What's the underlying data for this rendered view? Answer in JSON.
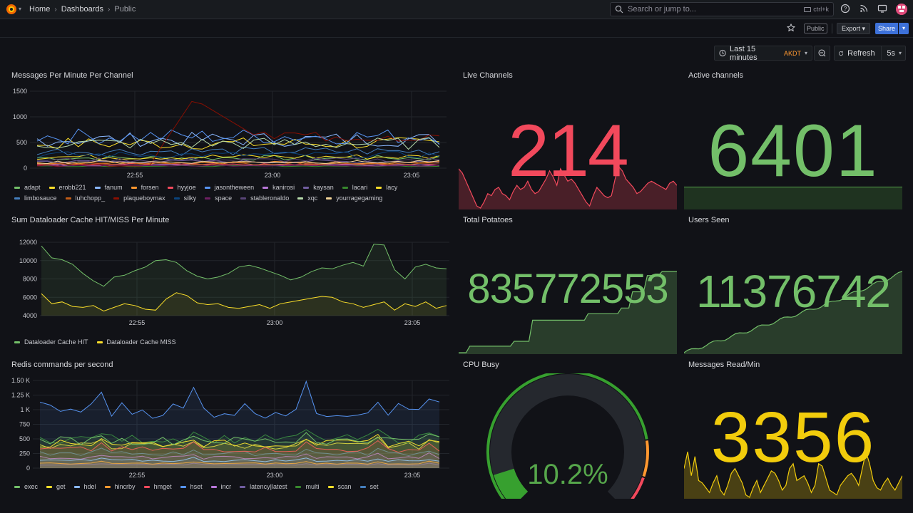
{
  "nav": {
    "breadcrumbs": [
      "Home",
      "Dashboards",
      "Public"
    ],
    "search_placeholder": "Search or jump to...",
    "search_shortcut": "ctrl+k"
  },
  "toolbar": {
    "public_badge": "Public",
    "export_label": "Export",
    "share_label": "Share",
    "time_range": "Last 15 minutes",
    "timezone": "AKDT",
    "refresh_label": "Refresh",
    "refresh_interval": "5s"
  },
  "panels": {
    "messages": {
      "title": "Messages Per Minute Per Channel",
      "yticks": [
        "1500",
        "1000",
        "500",
        "0"
      ],
      "xticks": [
        "22:55",
        "23:00",
        "23:05"
      ],
      "legend": [
        {
          "name": "adapt",
          "color": "#73bf69"
        },
        {
          "name": "erobb221",
          "color": "#fade2a"
        },
        {
          "name": "fanum",
          "color": "#8ab8ff"
        },
        {
          "name": "forsen",
          "color": "#ff9830"
        },
        {
          "name": "hyyjoe",
          "color": "#f2495c"
        },
        {
          "name": "jasontheween",
          "color": "#5794f2"
        },
        {
          "name": "kanirosi",
          "color": "#b877d9"
        },
        {
          "name": "kaysan",
          "color": "#705da0"
        },
        {
          "name": "lacari",
          "color": "#37872d"
        },
        {
          "name": "lacy",
          "color": "#fade2a"
        },
        {
          "name": "limbosauce",
          "color": "#447ebc"
        },
        {
          "name": "luhchopp_",
          "color": "#c15c17"
        },
        {
          "name": "plaqueboymax",
          "color": "#890f02"
        },
        {
          "name": "silky",
          "color": "#0a437c"
        },
        {
          "name": "space",
          "color": "#6d1f62"
        },
        {
          "name": "stableronaldo",
          "color": "#584477"
        },
        {
          "name": "xqc",
          "color": "#b7dbab"
        },
        {
          "name": "yourragegaming",
          "color": "#f4d598"
        }
      ]
    },
    "live": {
      "title": "Live Channels",
      "value": "214"
    },
    "active": {
      "title": "Active channels",
      "value": "6401"
    },
    "dataloader": {
      "title": "Sum Dataloader Cache HIT/MISS Per Minute",
      "yticks": [
        "12000",
        "10000",
        "8000",
        "6000",
        "4000"
      ],
      "xticks": [
        "22:55",
        "23:00",
        "23:05"
      ],
      "legend": [
        {
          "name": "Dataloader Cache HIT",
          "color": "#73bf69"
        },
        {
          "name": "Dataloader Cache MISS",
          "color": "#fade2a"
        }
      ]
    },
    "potatoes": {
      "title": "Total Potatoes",
      "value": "835772553"
    },
    "users": {
      "title": "Users Seen",
      "value": "11376742"
    },
    "redis": {
      "title": "Redis commands per second",
      "yticks": [
        "1.50 K",
        "1.25 K",
        "1 K",
        "750",
        "500",
        "250",
        "0"
      ],
      "xticks": [
        "22:55",
        "23:00",
        "23:05"
      ],
      "legend": [
        {
          "name": "exec",
          "color": "#73bf69"
        },
        {
          "name": "get",
          "color": "#fade2a"
        },
        {
          "name": "hdel",
          "color": "#8ab8ff"
        },
        {
          "name": "hincrby",
          "color": "#ff9830"
        },
        {
          "name": "hmget",
          "color": "#f2495c"
        },
        {
          "name": "hset",
          "color": "#5794f2"
        },
        {
          "name": "incr",
          "color": "#b877d9"
        },
        {
          "name": "latency|latest",
          "color": "#705da0"
        },
        {
          "name": "multi",
          "color": "#37872d"
        },
        {
          "name": "scan",
          "color": "#fade2a"
        },
        {
          "name": "set",
          "color": "#447ebc"
        }
      ]
    },
    "cpu": {
      "title": "CPU Busy",
      "value": "10.2%",
      "percent": 10.2
    },
    "messages_read": {
      "title": "Messages Read/Min",
      "value": "3356"
    }
  }
}
